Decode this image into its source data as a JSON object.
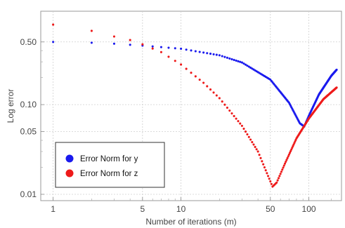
{
  "chart_data": {
    "type": "scatter",
    "xlabel": "Number of iterations (m)",
    "ylabel": "Log error",
    "xscale": "log",
    "yscale": "log",
    "xlim": [
      0.8,
      180
    ],
    "ylim": [
      0.0085,
      1.1
    ],
    "grid": true,
    "legend_position": "bottom-left",
    "x_ticks": [
      {
        "value": 1,
        "label": "1"
      },
      {
        "value": 5,
        "label": "5"
      },
      {
        "value": 10,
        "label": "10"
      },
      {
        "value": 50,
        "label": "50"
      },
      {
        "value": 100,
        "label": "100"
      }
    ],
    "y_ticks": [
      {
        "value": 0.01,
        "label": "0.01"
      },
      {
        "value": 0.05,
        "label": "0.05"
      },
      {
        "value": 0.1,
        "label": "0.10"
      },
      {
        "value": 0.5,
        "label": "0.50"
      }
    ],
    "series": [
      {
        "name": "Error Norm for y",
        "color": "#1a1aee",
        "anchors": [
          [
            1,
            0.5
          ],
          [
            2,
            0.49
          ],
          [
            3,
            0.478
          ],
          [
            5,
            0.455
          ],
          [
            10,
            0.42
          ],
          [
            20,
            0.355
          ],
          [
            30,
            0.295
          ],
          [
            50,
            0.19
          ],
          [
            70,
            0.105
          ],
          [
            85,
            0.062
          ],
          [
            92,
            0.057
          ],
          [
            100,
            0.075
          ],
          [
            120,
            0.13
          ],
          [
            150,
            0.21
          ],
          [
            165,
            0.245
          ]
        ]
      },
      {
        "name": "Error Norm for z",
        "color": "#ee1a1a",
        "anchors": [
          [
            1,
            0.78
          ],
          [
            2,
            0.665
          ],
          [
            3,
            0.575
          ],
          [
            4,
            0.525
          ],
          [
            5,
            0.47
          ],
          [
            7,
            0.385
          ],
          [
            10,
            0.28
          ],
          [
            15,
            0.175
          ],
          [
            20,
            0.118
          ],
          [
            30,
            0.058
          ],
          [
            40,
            0.03
          ],
          [
            48,
            0.016
          ],
          [
            52,
            0.0122
          ],
          [
            56,
            0.0135
          ],
          [
            65,
            0.022
          ],
          [
            80,
            0.042
          ],
          [
            100,
            0.07
          ],
          [
            130,
            0.115
          ],
          [
            165,
            0.155
          ]
        ]
      }
    ]
  }
}
